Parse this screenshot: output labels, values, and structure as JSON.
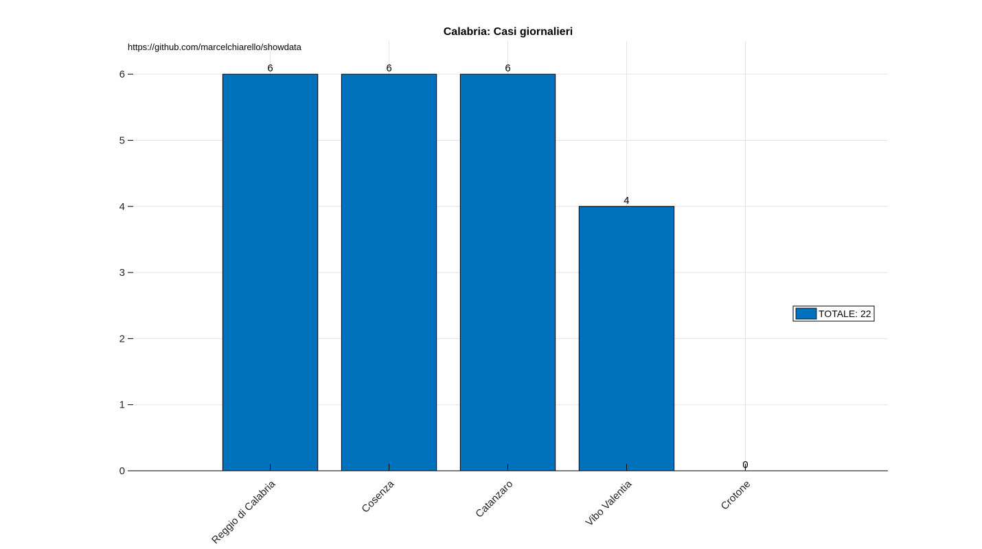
{
  "chart_data": {
    "type": "bar",
    "title": "Calabria: Casi giornalieri",
    "source_text": "https://github.com/marcelchiarello/showdata",
    "categories": [
      "Reggio di Calabria",
      "Cosenza",
      "Catanzaro",
      "Vibo Valentia",
      "Crotone"
    ],
    "values": [
      6,
      6,
      6,
      4,
      0
    ],
    "value_labels": [
      "6",
      "6",
      "6",
      "4",
      "0"
    ],
    "xlabel": "",
    "ylabel": "",
    "ylim": [
      0,
      6.5
    ],
    "yticks": [
      0,
      1,
      2,
      3,
      4,
      5,
      6
    ],
    "ytick_labels": [
      "0",
      "1",
      "2",
      "3",
      "4",
      "5",
      "6"
    ],
    "grid": true,
    "legend": {
      "entries": [
        "TOTALE: 22"
      ],
      "placement": "right"
    },
    "colors": {
      "bar": "#0072BD",
      "grid": "#e3e3e3",
      "axis": "#000000"
    }
  }
}
